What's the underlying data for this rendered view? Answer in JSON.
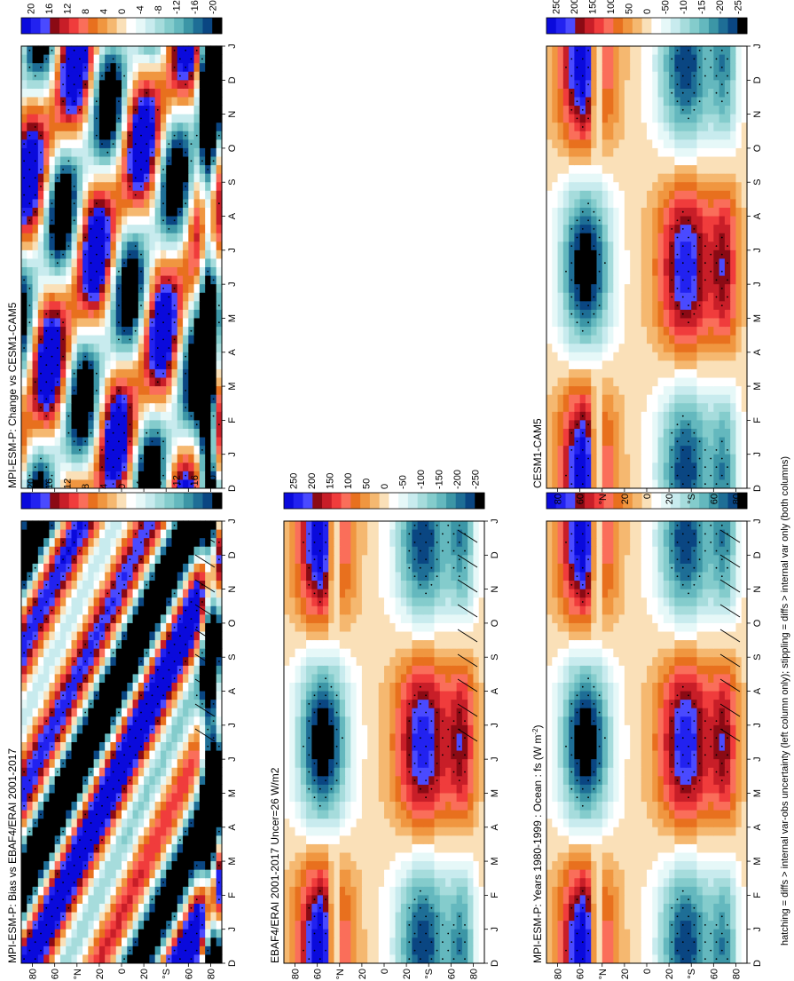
{
  "figure": {
    "footer": "hatching = diffs > internal var-obs uncertainty (left column only); stippling = diffs > internal var only (both columns)",
    "month_ticks": [
      "D",
      "J",
      "F",
      "M",
      "A",
      "M",
      "J",
      "J",
      "A",
      "S",
      "O",
      "N",
      "D",
      "J"
    ],
    "lat_ticks": [
      "80",
      "60",
      "°N",
      "20",
      "0",
      "20",
      "°S",
      "60",
      "80"
    ]
  },
  "colorbars": {
    "field": [
      "250",
      "200",
      "150",
      "100",
      "50",
      "0",
      "-50",
      "-100",
      "-150",
      "-200",
      "-250"
    ],
    "diff": [
      "20",
      "16",
      "12",
      "8",
      "4",
      "0",
      "-4",
      "-8",
      "-12",
      "-16",
      "-20"
    ],
    "field_colors": [
      "#0a0adc",
      "#2222f0",
      "#4a4aff",
      "#8b0a14",
      "#c81e28",
      "#f03c3c",
      "#fa6e5a",
      "#e8701e",
      "#f09640",
      "#f5b870",
      "#fae0b8",
      "#ffffff",
      "#e6f8f8",
      "#c8ebee",
      "#a6dcdc",
      "#84cccc",
      "#64b8be",
      "#3c96a6",
      "#1e6e96",
      "#0a4682",
      "#000000"
    ],
    "diff_colors": [
      "#0a0adc",
      "#2222f0",
      "#4a4aff",
      "#8b0a14",
      "#c81e28",
      "#f03c3c",
      "#fa6e5a",
      "#e8701e",
      "#f09640",
      "#f5b870",
      "#fae0b8",
      "#ffffff",
      "#e6f8f8",
      "#c8ebee",
      "#a6dcdc",
      "#84cccc",
      "#64b8be",
      "#3c96a6",
      "#1e6e96",
      "#0a4682",
      "#000000"
    ]
  },
  "chart_data": [
    {
      "type": "heatmap",
      "title": "MPI-ESM-P: Years 1980-1999 : Ocean : fs (W m",
      "title_sup": "-2",
      "title_tail": ")",
      "x": "month (D to J)",
      "y": "latitude 90N to 90S",
      "zrange": [
        -250,
        250
      ],
      "colorbar": "field",
      "pattern": "seasonal",
      "hatching": true,
      "hatch_segments": [
        [
          -70,
          4.6,
          -60,
          3.9
        ],
        [
          -70,
          5.6,
          -60,
          5.0
        ],
        [
          -82,
          0.2,
          -70,
          -0.2
        ],
        [
          -82,
          9.0,
          -70,
          9.8
        ],
        [
          -82,
          10.5,
          -70,
          11.0
        ]
      ]
    },
    {
      "type": "heatmap",
      "title": "CESM1-CAM5",
      "zrange": [
        -250,
        250
      ],
      "colorbar": "field",
      "pattern": "seasonal",
      "hatching": false
    },
    {
      "type": "heatmap",
      "title": "EBAF4/ERAI 2001-2017 Uncer=26 W/m2",
      "zrange": [
        -250,
        250
      ],
      "colorbar": "field",
      "pattern": "seasonal",
      "hatching": true
    },
    {
      "type": "heatmap",
      "title": "MPI-ESM-P: Change vs CESM1-CAM5",
      "zrange": [
        -20,
        20
      ],
      "colorbar": "diff",
      "pattern": "change",
      "hatching": false
    },
    {
      "type": "heatmap",
      "title": "MPI-ESM-P: Bias vs EBAF4/ERAI 2001-2017",
      "zrange": [
        -20,
        20
      ],
      "colorbar": "diff",
      "pattern": "bias",
      "hatching": true
    }
  ]
}
